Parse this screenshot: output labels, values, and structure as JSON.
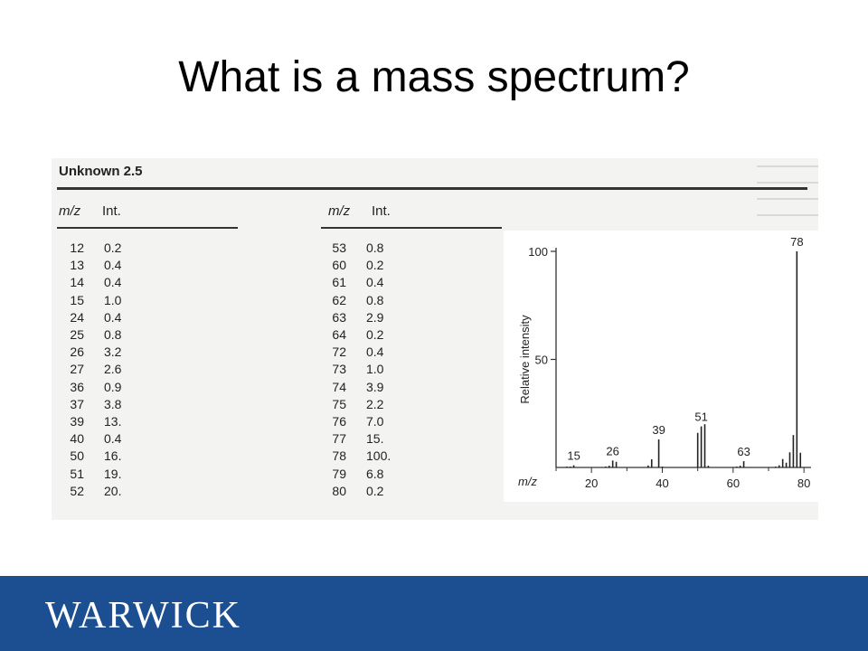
{
  "slide": {
    "title": "What is a mass spectrum?"
  },
  "table": {
    "heading": "Unknown 2.5",
    "col_mz": "m/z",
    "col_int": "Int.",
    "left_rows": [
      {
        "mz": "12",
        "int": "0.2"
      },
      {
        "mz": "13",
        "int": "0.4"
      },
      {
        "mz": "14",
        "int": "0.4"
      },
      {
        "mz": "15",
        "int": "1.0"
      },
      {
        "mz": "24",
        "int": "0.4"
      },
      {
        "mz": "25",
        "int": "0.8"
      },
      {
        "mz": "26",
        "int": "3.2"
      },
      {
        "mz": "27",
        "int": "2.6"
      },
      {
        "mz": "36",
        "int": "0.9"
      },
      {
        "mz": "37",
        "int": "3.8"
      },
      {
        "mz": "39",
        "int": "13."
      },
      {
        "mz": "40",
        "int": "0.4"
      },
      {
        "mz": "50",
        "int": "16."
      },
      {
        "mz": "51",
        "int": "19."
      },
      {
        "mz": "52",
        "int": "20."
      }
    ],
    "right_rows": [
      {
        "mz": "53",
        "int": "0.8"
      },
      {
        "mz": "60",
        "int": "0.2"
      },
      {
        "mz": "61",
        "int": "0.4"
      },
      {
        "mz": "62",
        "int": "0.8"
      },
      {
        "mz": "63",
        "int": "2.9"
      },
      {
        "mz": "64",
        "int": "0.2"
      },
      {
        "mz": "72",
        "int": "0.4"
      },
      {
        "mz": "73",
        "int": "1.0"
      },
      {
        "mz": "74",
        "int": "3.9"
      },
      {
        "mz": "75",
        "int": "2.2"
      },
      {
        "mz": "76",
        "int": "7.0"
      },
      {
        "mz": "77",
        "int": "15."
      },
      {
        "mz": "78",
        "int": "100."
      },
      {
        "mz": "79",
        "int": "6.8"
      },
      {
        "mz": "80",
        "int": "0.2"
      }
    ]
  },
  "chart_data": {
    "type": "bar",
    "xlabel": "m/z",
    "ylabel": "Relative intensity",
    "xlim": [
      10,
      82
    ],
    "ylim": [
      0,
      100
    ],
    "x_ticks": [
      20,
      40,
      60,
      80
    ],
    "y_ticks": [
      50,
      100
    ],
    "peak_labels": [
      15,
      26,
      39,
      51,
      63,
      78
    ],
    "x": [
      12,
      13,
      14,
      15,
      24,
      25,
      26,
      27,
      36,
      37,
      39,
      40,
      50,
      51,
      52,
      53,
      60,
      61,
      62,
      63,
      64,
      72,
      73,
      74,
      75,
      76,
      77,
      78,
      79,
      80
    ],
    "values": [
      0.2,
      0.4,
      0.4,
      1.0,
      0.4,
      0.8,
      3.2,
      2.6,
      0.9,
      3.8,
      13,
      0.4,
      16,
      19,
      20,
      0.8,
      0.2,
      0.4,
      0.8,
      2.9,
      0.2,
      0.4,
      1.0,
      3.9,
      2.2,
      7.0,
      15,
      100,
      6.8,
      0.2
    ]
  },
  "footer": {
    "logo_text": "WARWICK",
    "color": "#1b4f92"
  }
}
